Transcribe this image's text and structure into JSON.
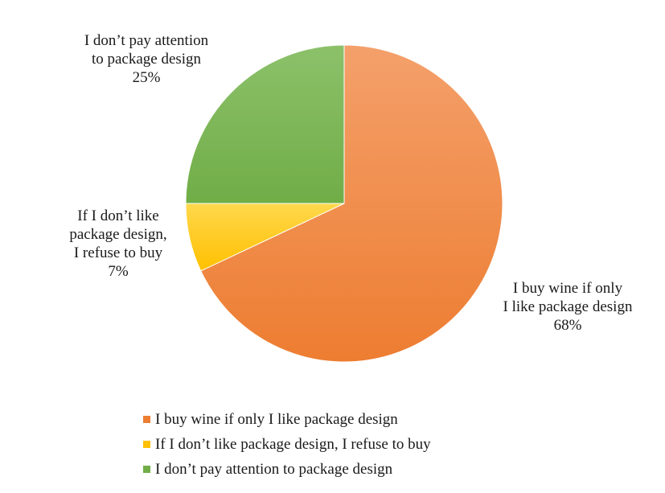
{
  "chart_data": {
    "type": "pie",
    "title": "",
    "slices": [
      {
        "name": "I buy wine if only I like package design",
        "label_lines": [
          "I buy wine if only",
          "I like package design"
        ],
        "value": 68,
        "label_value": "68%",
        "color": "#ED7D31",
        "color_light": "#F4A06B"
      },
      {
        "name": "If I don’t like package design, I refuse to buy",
        "label_lines": [
          "If I don’t like",
          "package design,",
          "I refuse to buy"
        ],
        "value": 7,
        "label_value": "7%",
        "color": "#FFC000",
        "color_light": "#FFD84D"
      },
      {
        "name": "I don’t pay attention to package design",
        "label_lines": [
          "I don’t pay attention",
          "to package design"
        ],
        "value": 25,
        "label_value": "25%",
        "color": "#70AD47",
        "color_light": "#8CC16A"
      }
    ],
    "legend_position": "bottom"
  }
}
